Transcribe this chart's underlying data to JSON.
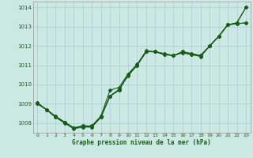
{
  "title": "Graphe pression niveau de la mer (hPa)",
  "background_color": "#cce8e4",
  "grid_color": "#aacccc",
  "line_color": "#1a5c1a",
  "xlim": [
    -0.5,
    23.5
  ],
  "ylim": [
    1007.5,
    1014.3
  ],
  "yticks": [
    1008,
    1009,
    1010,
    1011,
    1012,
    1013,
    1014
  ],
  "xticks": [
    0,
    1,
    2,
    3,
    4,
    5,
    6,
    7,
    8,
    9,
    10,
    11,
    12,
    13,
    14,
    15,
    16,
    17,
    18,
    19,
    20,
    21,
    22,
    23
  ],
  "c1": [
    1009.0,
    1008.7,
    1008.35,
    1008.05,
    1007.75,
    1007.85,
    1007.85,
    1008.35,
    1009.4,
    1009.75,
    1010.45,
    1011.0,
    1011.7,
    1011.7,
    1011.6,
    1011.5,
    1011.7,
    1011.6,
    1011.5,
    1012.0,
    1012.5,
    1013.1,
    1013.2,
    1014.0
  ],
  "c2": [
    1009.0,
    1008.7,
    1008.35,
    1008.05,
    1007.75,
    1007.85,
    1007.85,
    1008.35,
    1009.7,
    1009.85,
    1010.55,
    1011.05,
    1011.75,
    1011.7,
    1011.6,
    1011.5,
    1011.7,
    1011.6,
    1011.5,
    1012.0,
    1012.5,
    1013.1,
    1013.2,
    1014.0
  ],
  "c3": [
    1009.05,
    1008.7,
    1008.3,
    1008.05,
    1007.75,
    1007.8,
    1007.8,
    1008.3,
    1009.4,
    1009.7,
    1010.5,
    1011.0,
    1011.7,
    1011.7,
    1011.55,
    1011.5,
    1011.65,
    1011.55,
    1011.45,
    1012.0,
    1012.5,
    1013.1,
    1013.15,
    1013.2
  ],
  "c4": [
    1009.05,
    1008.7,
    1008.3,
    1008.0,
    1007.7,
    1007.8,
    1007.8,
    1008.3,
    1009.4,
    1009.7,
    1010.5,
    1011.0,
    1011.7,
    1011.7,
    1011.55,
    1011.5,
    1011.65,
    1011.55,
    1011.5,
    1012.0,
    1012.5,
    1013.1,
    1013.15,
    1013.2
  ]
}
